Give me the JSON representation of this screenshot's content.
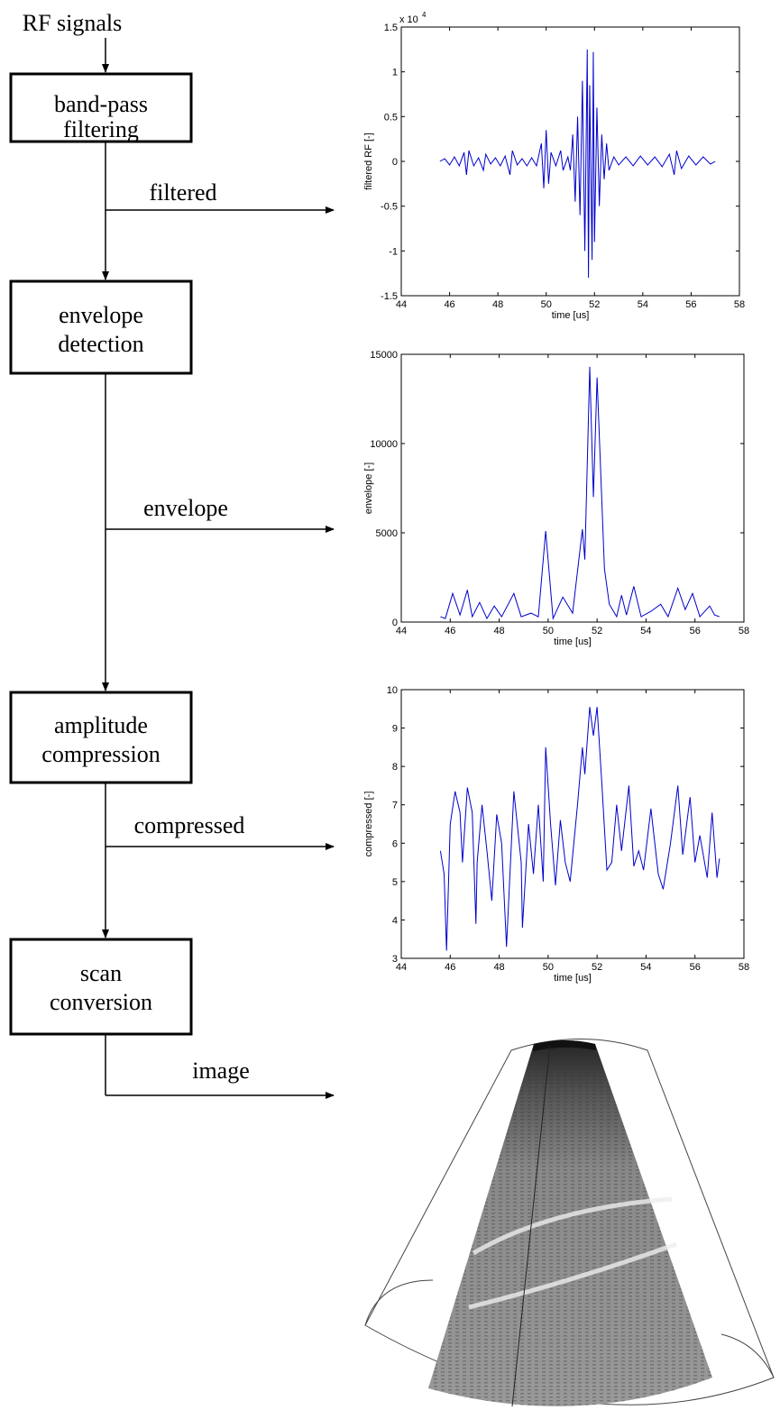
{
  "diagram": {
    "input_label": "RF signals",
    "nodes": [
      {
        "lines": [
          "band-pass",
          "filtering"
        ]
      },
      {
        "lines": [
          "envelope",
          "detection"
        ]
      },
      {
        "lines": [
          "amplitude",
          "compression"
        ]
      },
      {
        "lines": [
          "scan",
          "conversion"
        ]
      }
    ],
    "outputs": [
      "filtered",
      "envelope",
      "compressed",
      "image"
    ]
  },
  "chart_data": [
    {
      "type": "line",
      "xlabel": "time [us]",
      "ylabel": "filtered RF [-]",
      "axis_multiplier": "x 10",
      "axis_multiplier_exponent": "4",
      "color": "#0000cc",
      "xlim": [
        44,
        58
      ],
      "xticks": [
        44,
        46,
        48,
        50,
        52,
        54,
        56,
        58
      ],
      "ylim": [
        -1.5,
        1.5
      ],
      "yticks": [
        -1.5,
        -1,
        -0.5,
        0,
        0.5,
        1,
        1.5
      ],
      "x": [
        45.6,
        45.8,
        46.0,
        46.2,
        46.4,
        46.6,
        46.7,
        46.8,
        47.0,
        47.2,
        47.4,
        47.5,
        47.7,
        47.9,
        48.1,
        48.3,
        48.5,
        48.6,
        48.8,
        49.0,
        49.2,
        49.4,
        49.6,
        49.8,
        49.9,
        50.0,
        50.1,
        50.2,
        50.4,
        50.6,
        50.7,
        50.9,
        51.0,
        51.1,
        51.2,
        51.3,
        51.4,
        51.5,
        51.6,
        51.7,
        51.75,
        51.8,
        51.9,
        51.95,
        52.0,
        52.1,
        52.2,
        52.3,
        52.4,
        52.5,
        52.6,
        52.8,
        53.0,
        53.3,
        53.6,
        53.9,
        54.2,
        54.5,
        54.8,
        55.1,
        55.3,
        55.4,
        55.6,
        55.9,
        56.2,
        56.5,
        56.8,
        57.0
      ],
      "values": [
        0,
        0.03,
        -0.04,
        0.05,
        -0.05,
        0.1,
        -0.15,
        0.12,
        -0.05,
        0.04,
        -0.1,
        0.08,
        -0.03,
        0.04,
        -0.05,
        0.06,
        -0.15,
        0.12,
        -0.04,
        0.03,
        -0.05,
        0.04,
        -0.05,
        0.2,
        -0.3,
        0.35,
        -0.25,
        0.1,
        -0.05,
        0.12,
        -0.1,
        0.05,
        -0.1,
        0.3,
        -0.45,
        0.5,
        -0.6,
        0.9,
        -1.0,
        1.25,
        -1.3,
        0.85,
        -1.1,
        1.22,
        -0.9,
        0.6,
        -0.5,
        0.3,
        -0.2,
        0.2,
        -0.1,
        0.05,
        -0.04,
        0.05,
        -0.05,
        0.06,
        -0.04,
        0.05,
        -0.06,
        0.08,
        -0.15,
        0.12,
        -0.08,
        0.06,
        -0.04,
        0.05,
        -0.03,
        0
      ]
    },
    {
      "type": "line",
      "xlabel": "time [us]",
      "ylabel": "envelope [-]",
      "color": "#0000cc",
      "xlim": [
        44,
        58
      ],
      "xticks": [
        44,
        46,
        48,
        50,
        52,
        54,
        56,
        58
      ],
      "ylim": [
        0,
        15000
      ],
      "yticks": [
        0,
        5000,
        10000,
        15000
      ],
      "x": [
        45.6,
        45.8,
        46.1,
        46.4,
        46.7,
        46.9,
        47.2,
        47.5,
        47.8,
        48.1,
        48.6,
        48.9,
        49.3,
        49.6,
        49.9,
        50.2,
        50.6,
        51.0,
        51.4,
        51.5,
        51.7,
        51.85,
        52.0,
        52.3,
        52.5,
        52.8,
        53.0,
        53.2,
        53.5,
        53.8,
        54.2,
        54.6,
        54.9,
        55.3,
        55.6,
        55.9,
        56.2,
        56.6,
        56.8,
        57.0
      ],
      "values": [
        300,
        200,
        1600,
        400,
        1800,
        300,
        1100,
        200,
        900,
        300,
        1600,
        300,
        500,
        300,
        5100,
        200,
        1400,
        500,
        5200,
        3500,
        14300,
        7000,
        13700,
        3000,
        1000,
        300,
        1500,
        400,
        2000,
        300,
        600,
        1000,
        300,
        1900,
        700,
        1600,
        300,
        900,
        400,
        300
      ]
    },
    {
      "type": "line",
      "xlabel": "time [us]",
      "ylabel": "compressed [-]",
      "color": "#0000cc",
      "xlim": [
        44,
        58
      ],
      "xticks": [
        44,
        46,
        48,
        50,
        52,
        54,
        56,
        58
      ],
      "ylim": [
        3,
        10
      ],
      "yticks": [
        3,
        4,
        5,
        6,
        7,
        8,
        9,
        10
      ],
      "x": [
        45.6,
        45.75,
        45.85,
        46.0,
        46.2,
        46.4,
        46.5,
        46.7,
        46.9,
        47.05,
        47.1,
        47.3,
        47.5,
        47.7,
        47.9,
        48.1,
        48.3,
        48.6,
        48.9,
        48.95,
        49.2,
        49.4,
        49.6,
        49.8,
        49.9,
        50.1,
        50.3,
        50.5,
        50.7,
        50.9,
        51.2,
        51.4,
        51.5,
        51.7,
        51.85,
        52.0,
        52.2,
        52.4,
        52.6,
        52.8,
        53.0,
        53.3,
        53.5,
        53.7,
        53.9,
        54.2,
        54.5,
        54.7,
        55.0,
        55.3,
        55.5,
        55.8,
        56.0,
        56.2,
        56.5,
        56.7,
        56.9,
        57.0
      ],
      "values": [
        5.8,
        5.2,
        3.2,
        6.5,
        7.35,
        6.8,
        5.5,
        7.45,
        6.8,
        3.9,
        5.5,
        7.0,
        5.8,
        4.5,
        6.75,
        6.0,
        3.3,
        7.35,
        5.5,
        3.8,
        6.5,
        5.2,
        7.0,
        5.0,
        8.5,
        6.5,
        4.9,
        6.6,
        5.5,
        5.0,
        7.0,
        8.5,
        7.8,
        9.55,
        8.8,
        9.55,
        7.5,
        5.3,
        5.5,
        7.0,
        5.8,
        7.5,
        5.4,
        5.8,
        5.3,
        6.9,
        5.2,
        4.8,
        6.0,
        7.5,
        5.7,
        7.2,
        5.5,
        6.2,
        5.1,
        6.8,
        5.1,
        5.6
      ]
    }
  ]
}
